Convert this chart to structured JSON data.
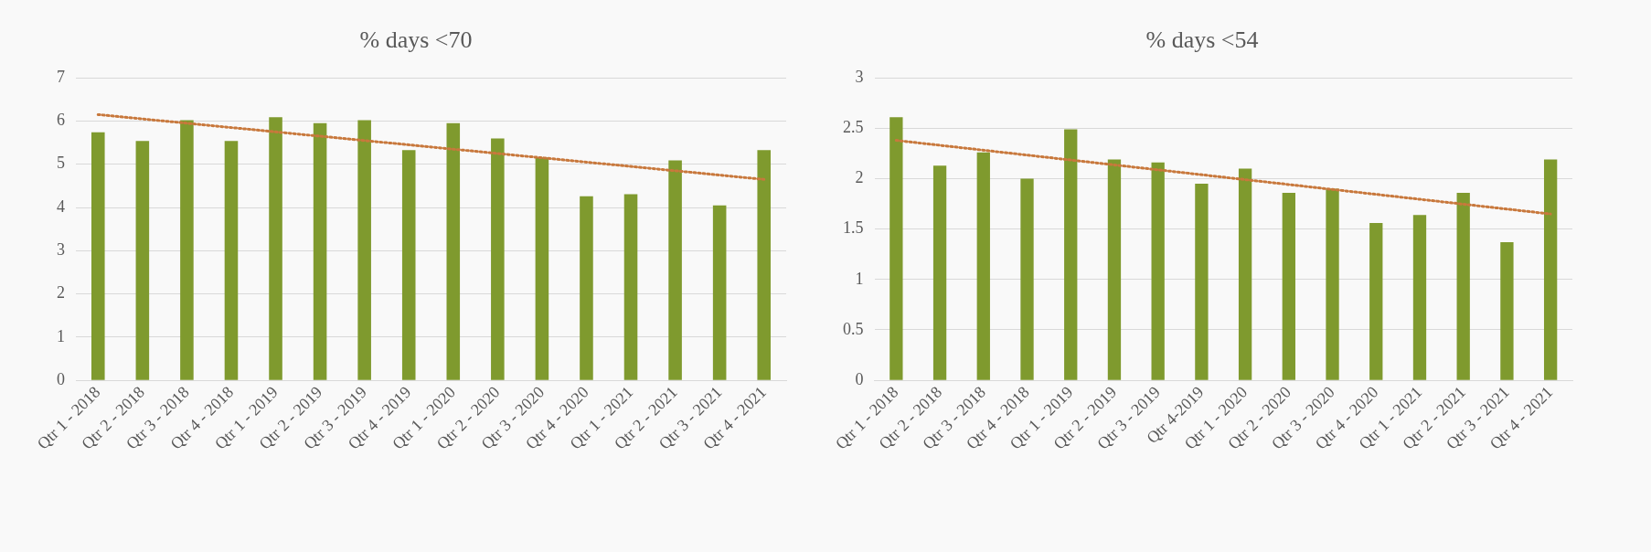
{
  "chart_data": [
    {
      "type": "bar",
      "title": "% days <70",
      "categories": [
        "Qtr 1 - 2018",
        "Qtr 2 - 2018",
        "Qtr 3 - 2018",
        "Qtr 4 - 2018",
        "Qtr 1 - 2019",
        "Qtr 2 - 2019",
        "Qtr 3 - 2019",
        "Qtr 4 - 2019",
        "Qtr 1 - 2020",
        "Qtr 2 - 2020",
        "Qtr 3 - 2020",
        "Qtr 4 - 2020",
        "Qtr 1 - 2021",
        "Qtr 2 - 2021",
        "Qtr 3 - 2021",
        "Qtr 4 - 2021"
      ],
      "series": [
        {
          "color": "#7f9a2e",
          "values": [
            5.74,
            5.54,
            6.02,
            5.54,
            6.09,
            5.95,
            6.02,
            5.33,
            5.95,
            5.6,
            5.16,
            4.26,
            4.31,
            5.09,
            4.05,
            5.33
          ]
        },
        {
          "type": "line",
          "color": "#c8783c",
          "line_style": "dotted",
          "marker": "none",
          "x": [
            "Qtr 1 - 2018",
            "Qtr 4 - 2021"
          ],
          "values": [
            6.15,
            4.65
          ]
        }
      ],
      "ylim": [
        0,
        7
      ],
      "yticks": [
        0,
        1,
        2,
        3,
        4,
        5,
        6,
        7
      ],
      "grid": "y",
      "legend": false
    },
    {
      "type": "bar",
      "title": "% days <54",
      "categories": [
        "Qtr 1 - 2018",
        "Qtr 2 - 2018",
        "Qtr 3 - 2018",
        "Qtr 4 - 2018",
        "Qtr 1 - 2019",
        "Qtr 2 - 2019",
        "Qtr 3 - 2019",
        "Qtr 4-2019",
        "Qtr 1 - 2020",
        "Qtr 2 - 2020",
        "Qtr 3 - 2020",
        "Qtr 4 - 2020",
        "Qtr 1 - 2021",
        "Qtr 2 - 2021",
        "Qtr 3 - 2021",
        "Qtr 4 - 2021"
      ],
      "series": [
        {
          "color": "#7f9a2e",
          "values": [
            2.61,
            2.13,
            2.26,
            2.0,
            2.49,
            2.19,
            2.16,
            1.95,
            2.1,
            1.86,
            1.9,
            1.56,
            1.64,
            1.86,
            1.37,
            2.19
          ]
        },
        {
          "type": "line",
          "color": "#c8783c",
          "line_style": "dotted",
          "marker": "none",
          "x": [
            "Qtr 1 - 2018",
            "Qtr 4 - 2021"
          ],
          "values": [
            2.38,
            1.65
          ]
        }
      ],
      "ylim": [
        0,
        3
      ],
      "yticks": [
        0,
        0.5,
        1,
        1.5,
        2,
        2.5,
        3
      ],
      "grid": "y",
      "legend": false
    }
  ]
}
